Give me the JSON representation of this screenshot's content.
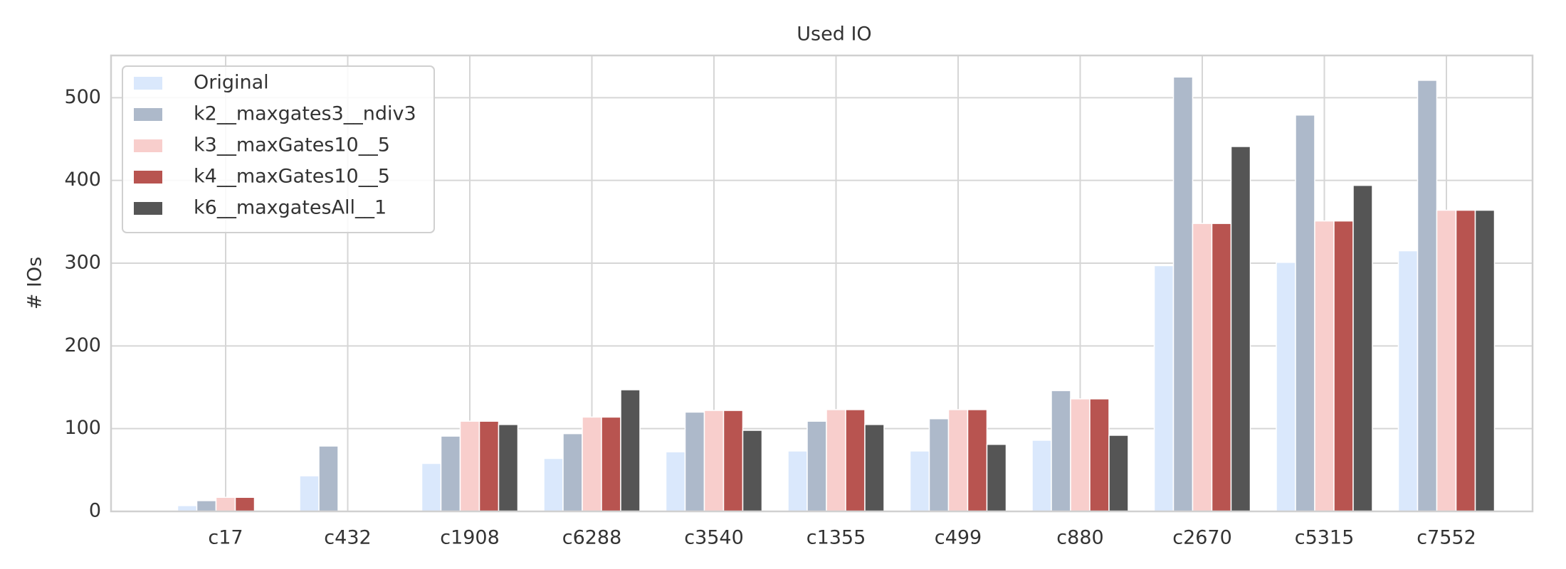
{
  "chart_data": {
    "type": "bar",
    "title": "Used IO",
    "y_label": "# IOs",
    "categories": [
      "c17",
      "c432",
      "c1908",
      "c6288",
      "c3540",
      "c1355",
      "c499",
      "c880",
      "c2670",
      "c5315",
      "c7552"
    ],
    "series": [
      {
        "name": "Original",
        "color": "#dae8fc",
        "values": [
          7,
          43,
          58,
          64,
          72,
          73,
          73,
          86,
          297,
          301,
          315
        ]
      },
      {
        "name": "k2__maxgates3__ndiv3",
        "color": "#adb9ca",
        "values": [
          13,
          79,
          91,
          94,
          120,
          109,
          112,
          146,
          525,
          479,
          521
        ]
      },
      {
        "name": "k3__maxGates10__5",
        "color": "#f8cecc",
        "values": [
          17,
          null,
          109,
          114,
          122,
          123,
          123,
          136,
          348,
          351,
          364
        ]
      },
      {
        "name": "k4__maxGates10__5",
        "color": "#b85450",
        "values": [
          17,
          null,
          109,
          114,
          122,
          123,
          123,
          136,
          348,
          351,
          364
        ]
      },
      {
        "name": "k6__maxgatesAll__1",
        "color": "#555555",
        "values": [
          null,
          null,
          105,
          147,
          98,
          105,
          81,
          92,
          441,
          394,
          364
        ]
      }
    ],
    "ylim": [
      0,
      551
    ],
    "yticks": [
      0,
      100,
      200,
      300,
      400,
      500
    ],
    "grid": true,
    "legend": "upper left"
  }
}
